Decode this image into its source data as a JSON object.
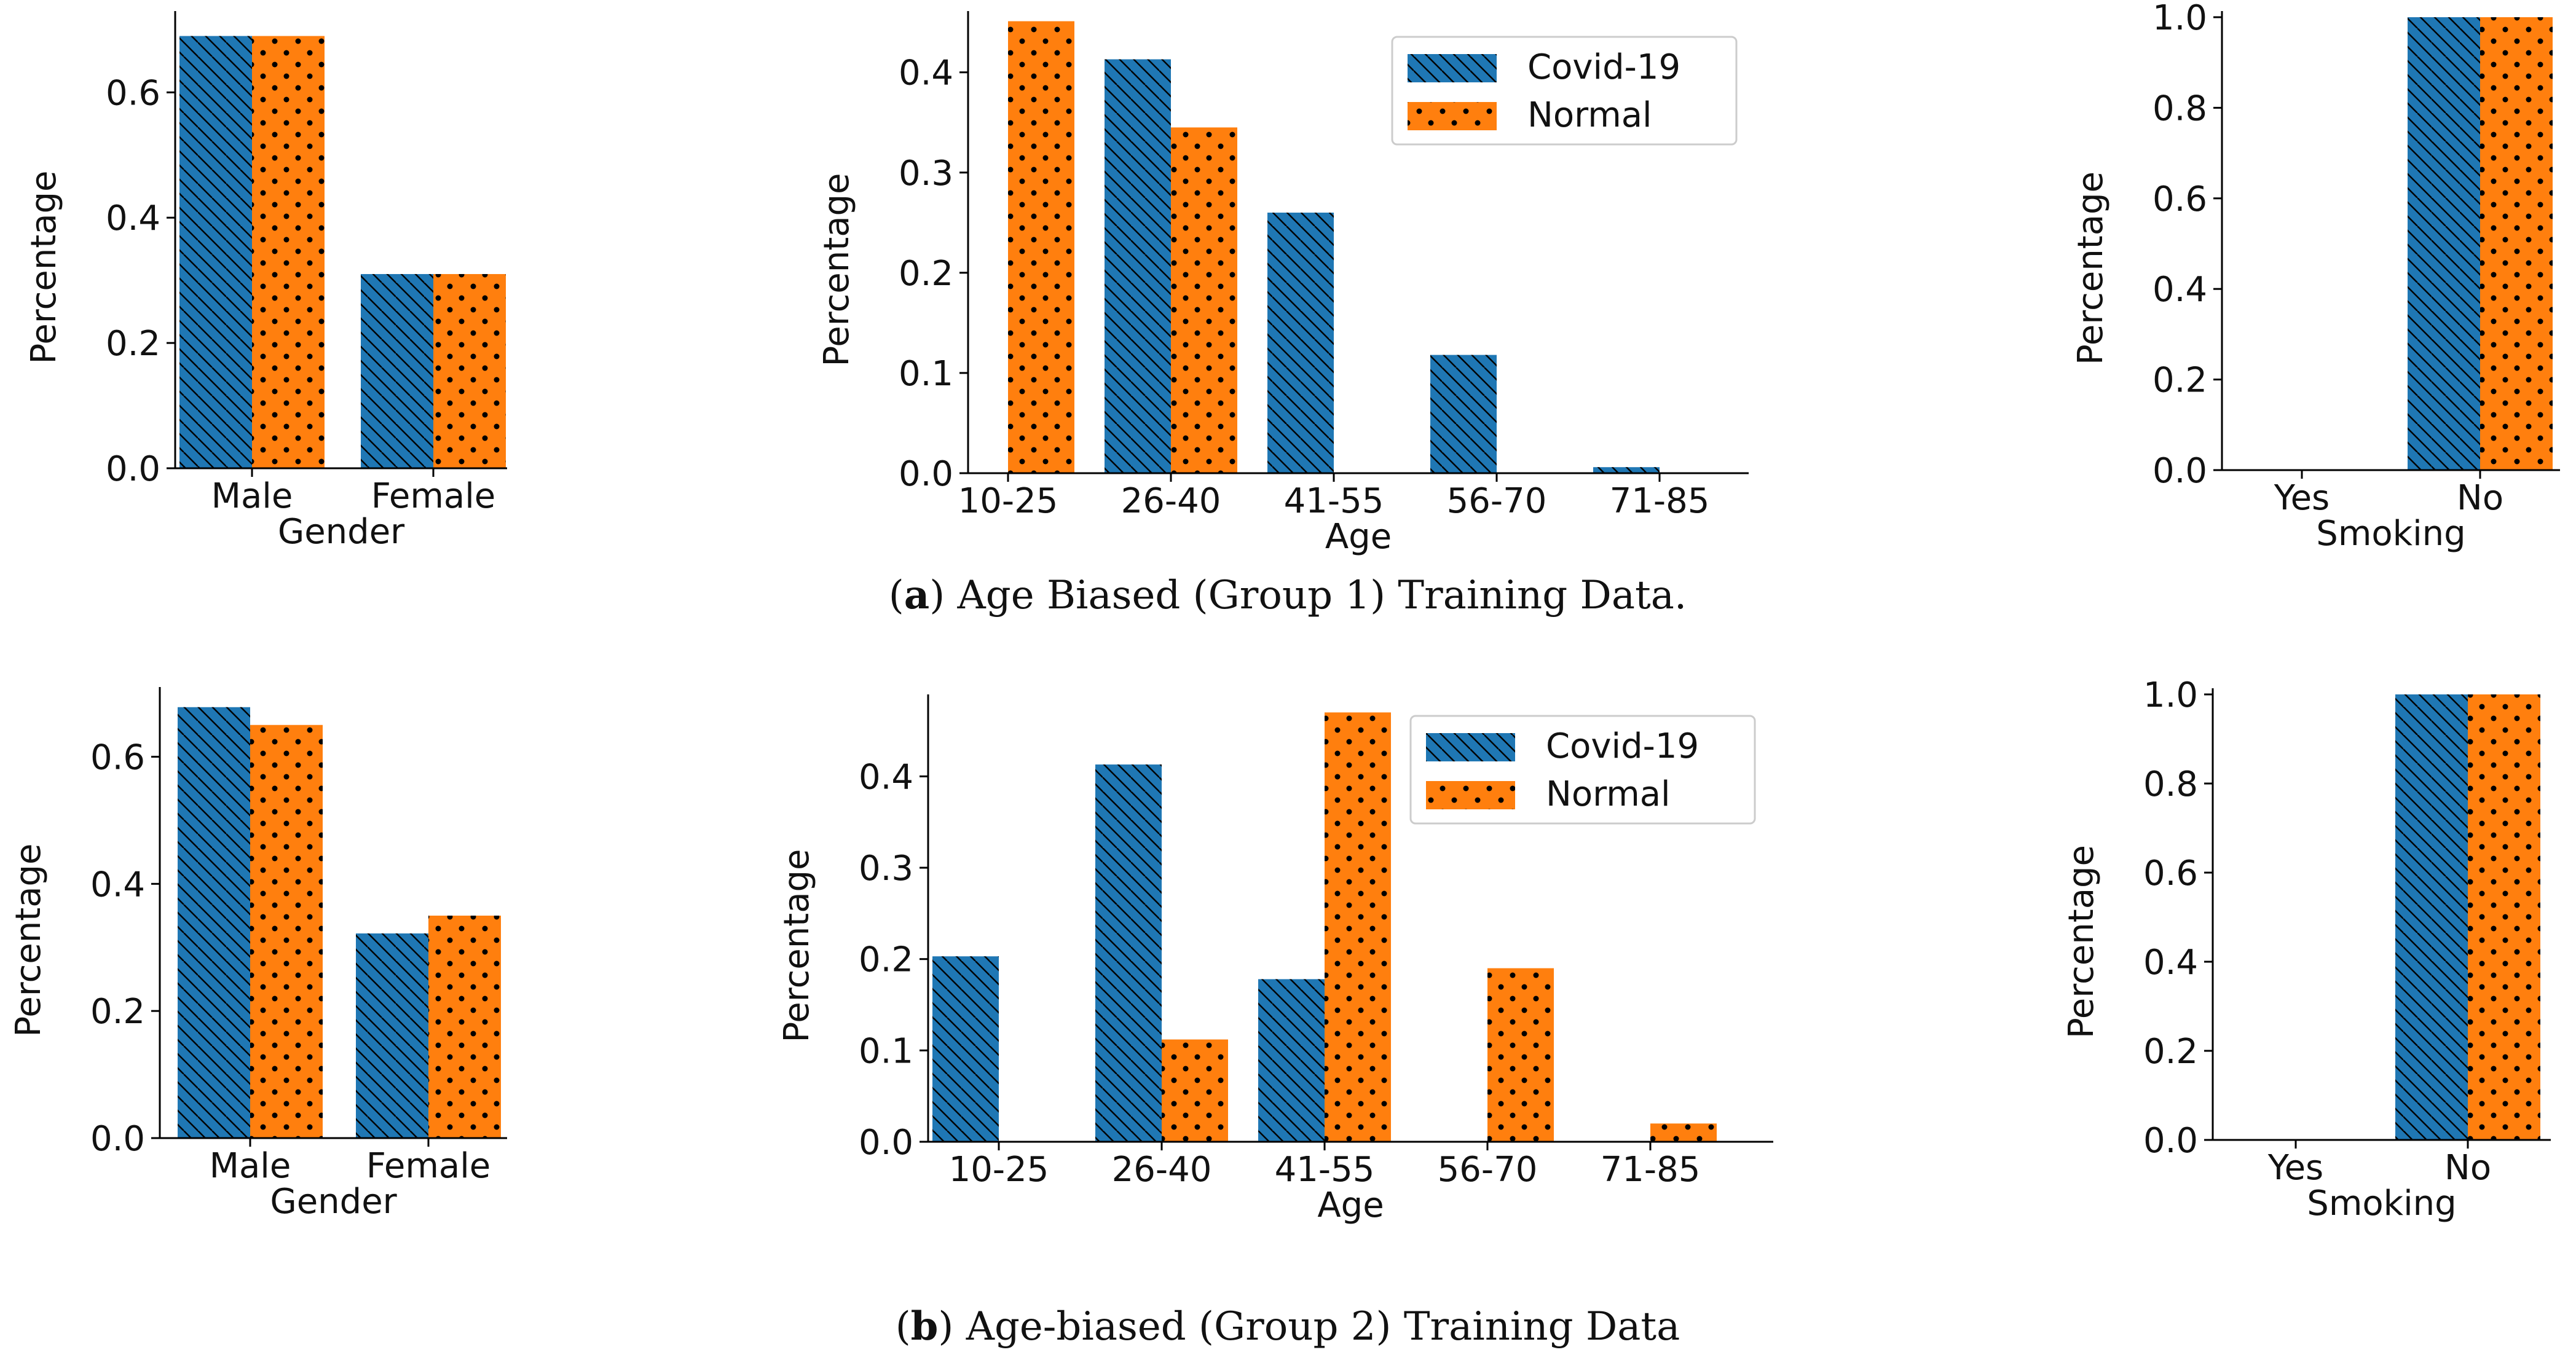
{
  "colors": {
    "covid": "#1f77b4",
    "normal": "#ff7f0e",
    "axis": "#000000",
    "text": "#111111"
  },
  "legend": {
    "placement": "upper-center"
  },
  "captions": [
    {
      "label": "a",
      "text": " Age Biased (Group 1) Training Data."
    },
    {
      "label": "b",
      "text": " Age-biased (Group 2) Training Data"
    }
  ],
  "chart_data": [
    {
      "id": "a-gender",
      "type": "bar",
      "xlabel": "Gender",
      "ylabel": "Percentage",
      "categories": [
        "Male",
        "Female"
      ],
      "ylim": [
        0,
        0.72
      ],
      "yticks": [
        "0.0",
        "0.2",
        "0.4",
        "0.6"
      ],
      "series": [
        {
          "name": "Covid-19",
          "values": [
            0.69,
            0.31
          ]
        },
        {
          "name": "Normal",
          "values": [
            0.69,
            0.31
          ]
        }
      ]
    },
    {
      "id": "a-age",
      "type": "bar",
      "xlabel": "Age",
      "ylabel": "Percentage",
      "categories": [
        "10-25",
        "26-40",
        "41-55",
        "56-70",
        "71-85"
      ],
      "ylim": [
        0,
        0.455
      ],
      "yticks": [
        "0.0",
        "0.1",
        "0.2",
        "0.3",
        "0.4"
      ],
      "legend": [
        "Covid-19",
        "Normal"
      ],
      "series": [
        {
          "name": "Covid-19",
          "values": [
            0,
            0.413,
            0.26,
            0.118,
            0.006
          ]
        },
        {
          "name": "Normal",
          "values": [
            0.451,
            0.345,
            0,
            0,
            0
          ]
        }
      ]
    },
    {
      "id": "a-smoking",
      "type": "bar",
      "xlabel": "Smoking",
      "ylabel": "Percentage",
      "categories": [
        "Yes",
        "No"
      ],
      "ylim": [
        0,
        1.0
      ],
      "yticks": [
        "0.0",
        "0.2",
        "0.4",
        "0.6",
        "0.8",
        "1.0"
      ],
      "series": [
        {
          "name": "Covid-19",
          "values": [
            0,
            1.0
          ]
        },
        {
          "name": "Normal",
          "values": [
            0,
            1.0
          ]
        }
      ]
    },
    {
      "id": "b-gender",
      "type": "bar",
      "xlabel": "Gender",
      "ylabel": "Percentage",
      "categories": [
        "Male",
        "Female"
      ],
      "ylim": [
        0,
        0.7
      ],
      "yticks": [
        "0.0",
        "0.2",
        "0.4",
        "0.6"
      ],
      "series": [
        {
          "name": "Covid-19",
          "values": [
            0.678,
            0.322
          ]
        },
        {
          "name": "Normal",
          "values": [
            0.65,
            0.35
          ]
        }
      ]
    },
    {
      "id": "b-age",
      "type": "bar",
      "xlabel": "Age",
      "ylabel": "Percentage",
      "categories": [
        "10-25",
        "26-40",
        "41-55",
        "56-70",
        "71-85"
      ],
      "ylim": [
        0,
        0.483
      ],
      "yticks": [
        "0.0",
        "0.1",
        "0.2",
        "0.3",
        "0.4"
      ],
      "legend": [
        "Covid-19",
        "Normal"
      ],
      "series": [
        {
          "name": "Covid-19",
          "values": [
            0.203,
            0.413,
            0.178,
            0,
            0
          ]
        },
        {
          "name": "Normal",
          "values": [
            0,
            0.112,
            0.47,
            0.19,
            0.02
          ]
        }
      ]
    },
    {
      "id": "b-smoking",
      "type": "bar",
      "xlabel": "Smoking",
      "ylabel": "Percentage",
      "categories": [
        "Yes",
        "No"
      ],
      "ylim": [
        0,
        1.0
      ],
      "yticks": [
        "0.0",
        "0.2",
        "0.4",
        "0.6",
        "0.8",
        "1.0"
      ],
      "series": [
        {
          "name": "Covid-19",
          "values": [
            0,
            1.0
          ]
        },
        {
          "name": "Normal",
          "values": [
            0,
            1.0
          ]
        }
      ]
    }
  ]
}
